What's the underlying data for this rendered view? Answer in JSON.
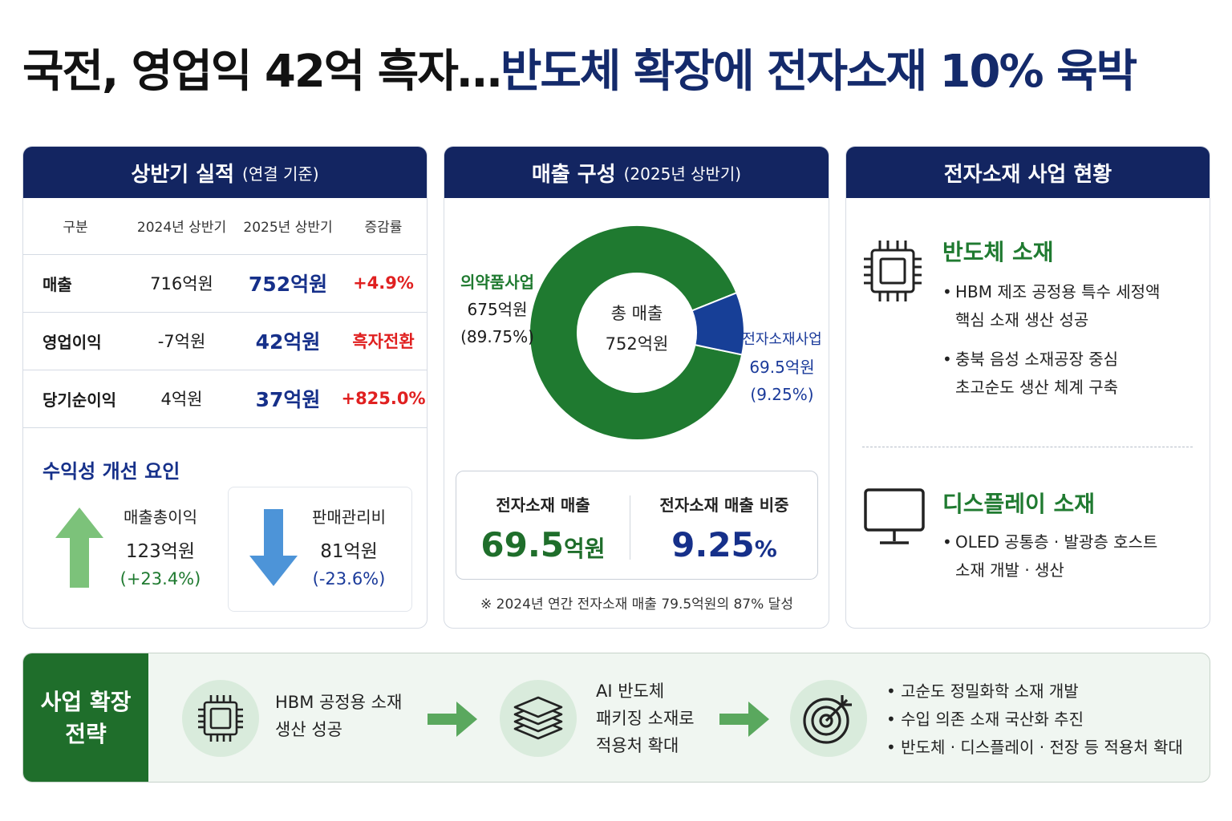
{
  "headline": {
    "part1": "국전, 영업익 42억 흑자…",
    "part2": "반도체 확장에 전자소재 10% 육박"
  },
  "performance": {
    "title": "상반기 실적",
    "subtitle": "(연결 기준)",
    "columns": [
      "구분",
      "2024년 상반기",
      "2025년 상반기",
      "증감률"
    ],
    "rows": [
      {
        "label": "매출",
        "y2024": "716억원",
        "y2025": "752억원",
        "change": "+4.9%"
      },
      {
        "label": "영업이익",
        "y2024": "-7억원",
        "y2025": "42억원",
        "change": "흑자전환"
      },
      {
        "label": "당기순이익",
        "y2024": "4억원",
        "y2025": "37억원",
        "change": "+825.0%"
      }
    ],
    "factors_title": "수익성 개선 요인",
    "factor1": {
      "label": "매출총이익",
      "value": "123억원",
      "change": "(+23.4%)",
      "direction": "up",
      "color": "#7cc27a"
    },
    "factor2": {
      "label": "판매관리비",
      "value": "81억원",
      "change": "(-23.6%)",
      "direction": "down",
      "color": "#4d94d8"
    }
  },
  "revenue": {
    "title": "매출 구성",
    "subtitle": "(2025년 상반기)",
    "center_label": "총 매출",
    "center_value": "752억원",
    "segments": [
      {
        "name": "의약품사업",
        "value": "675억원",
        "share": "(89.75%)",
        "pct": 89.75,
        "color": "#1f7a30"
      },
      {
        "name": "전자소재사업",
        "value": "69.5억원",
        "share": "(9.25%)",
        "pct": 9.25,
        "color": "#173f97"
      }
    ],
    "stat1_title": "전자소재 매출",
    "stat1_value": "69.5",
    "stat1_unit": "억원",
    "stat2_title": "전자소재 매출 비중",
    "stat2_value": "9.25",
    "stat2_unit": "%",
    "note": "※ 2024년 연간 전자소재 매출 79.5억원의 87% 달성"
  },
  "electronics": {
    "title": "전자소재 사업 현황",
    "semi": {
      "title": "반도체 소재",
      "icon": "chip-icon",
      "b1l1": "HBM 제조 공정용 특수 세정액",
      "b1l2": "핵심 소재 생산 성공",
      "b2l1": "충북 음성 소재공장 중심",
      "b2l2": "초고순도 생산 체계 구축"
    },
    "display": {
      "title": "디스플레이 소재",
      "icon": "monitor-icon",
      "b1l1": "OLED 공통층 · 발광층 호스트",
      "b1l2": "소재 개발 · 생산"
    }
  },
  "strategy": {
    "title_l1": "사업 확장",
    "title_l2": "전략",
    "step1": {
      "icon": "chip-icon",
      "l1": "HBM 공정용 소재",
      "l2": "생산 성공"
    },
    "step2": {
      "icon": "layers-icon",
      "l1": "AI 반도체",
      "l2": "패키징 소재로",
      "l3": "적용처 확대"
    },
    "step3": {
      "icon": "target-icon"
    },
    "bullets": [
      "고순도 정밀화학 소재 개발",
      "수입 의존 소재 국산화 추진",
      "반도체 · 디스플레이 · 전장 등 적용처 확대"
    ]
  }
}
